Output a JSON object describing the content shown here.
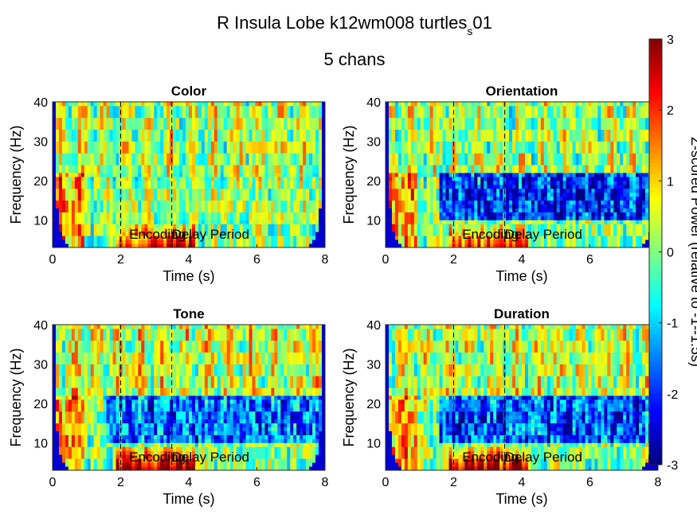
{
  "figure": {
    "title_main": "R Insula Lobe k12wm008 turtles",
    "title_sub_script": "s",
    "title_tail": "01",
    "title_line2": "5 chans"
  },
  "chart_data": [
    {
      "type": "heatmap",
      "title": "Color",
      "xlabel": "Time (s)",
      "ylabel": "Frequency (Hz)",
      "xlim": [
        0,
        8
      ],
      "ylim": [
        3,
        40
      ],
      "xticks": [
        "0",
        "2",
        "4",
        "6",
        "8"
      ],
      "yticks": [
        "10",
        "20",
        "30",
        "40"
      ],
      "markers_s": [
        2.0,
        3.5
      ],
      "annotations": [
        "Encoding",
        "Delay Period"
      ],
      "pattern": {
        "low_band_peak": 2.5,
        "alpha_band_z": 0.2,
        "high_band_z": 0.3
      }
    },
    {
      "type": "heatmap",
      "title": "Orientation",
      "xlabel": "Time (s)",
      "ylabel": "Frequency (Hz)",
      "xlim": [
        0,
        8
      ],
      "ylim": [
        3,
        40
      ],
      "xticks": [
        "0",
        "2",
        "4",
        "6",
        "8"
      ],
      "yticks": [
        "10",
        "20",
        "30",
        "40"
      ],
      "markers_s": [
        2.0,
        3.5
      ],
      "annotations": [
        "Encoding",
        "Delay Period"
      ],
      "pattern": {
        "low_band_peak": 2.0,
        "alpha_band_z": -2.6,
        "high_band_z": 0.2
      }
    },
    {
      "type": "heatmap",
      "title": "Tone",
      "xlabel": "Time (s)",
      "ylabel": "Frequency (Hz)",
      "xlim": [
        0,
        8
      ],
      "ylim": [
        3,
        40
      ],
      "xticks": [
        "0",
        "2",
        "4",
        "6",
        "8"
      ],
      "yticks": [
        "10",
        "20",
        "30",
        "40"
      ],
      "markers_s": [
        2.0,
        3.5
      ],
      "annotations": [
        "Encoding",
        "Delay Period"
      ],
      "pattern": {
        "low_band_peak": 3.0,
        "alpha_band_z": -2.0,
        "high_band_z": 0.5
      }
    },
    {
      "type": "heatmap",
      "title": "Duration",
      "xlabel": "Time (s)",
      "ylabel": "Frequency (Hz)",
      "xlim": [
        0,
        8
      ],
      "ylim": [
        3,
        40
      ],
      "xticks": [
        "0",
        "2",
        "4",
        "6",
        "8"
      ],
      "yticks": [
        "10",
        "20",
        "30",
        "40"
      ],
      "markers_s": [
        2.0,
        3.5
      ],
      "annotations": [
        "Encoding",
        "Delay Period"
      ],
      "pattern": {
        "low_band_peak": 2.8,
        "alpha_band_z": -2.2,
        "high_band_z": 0.4
      }
    }
  ],
  "colorbar": {
    "label": "Z-scored Power (relative to -1--1.5s)",
    "range": [
      -3,
      3
    ],
    "ticks": [
      "3",
      "2",
      "1",
      "0",
      "-1",
      "-2",
      "-3"
    ],
    "colormap": "jet"
  }
}
